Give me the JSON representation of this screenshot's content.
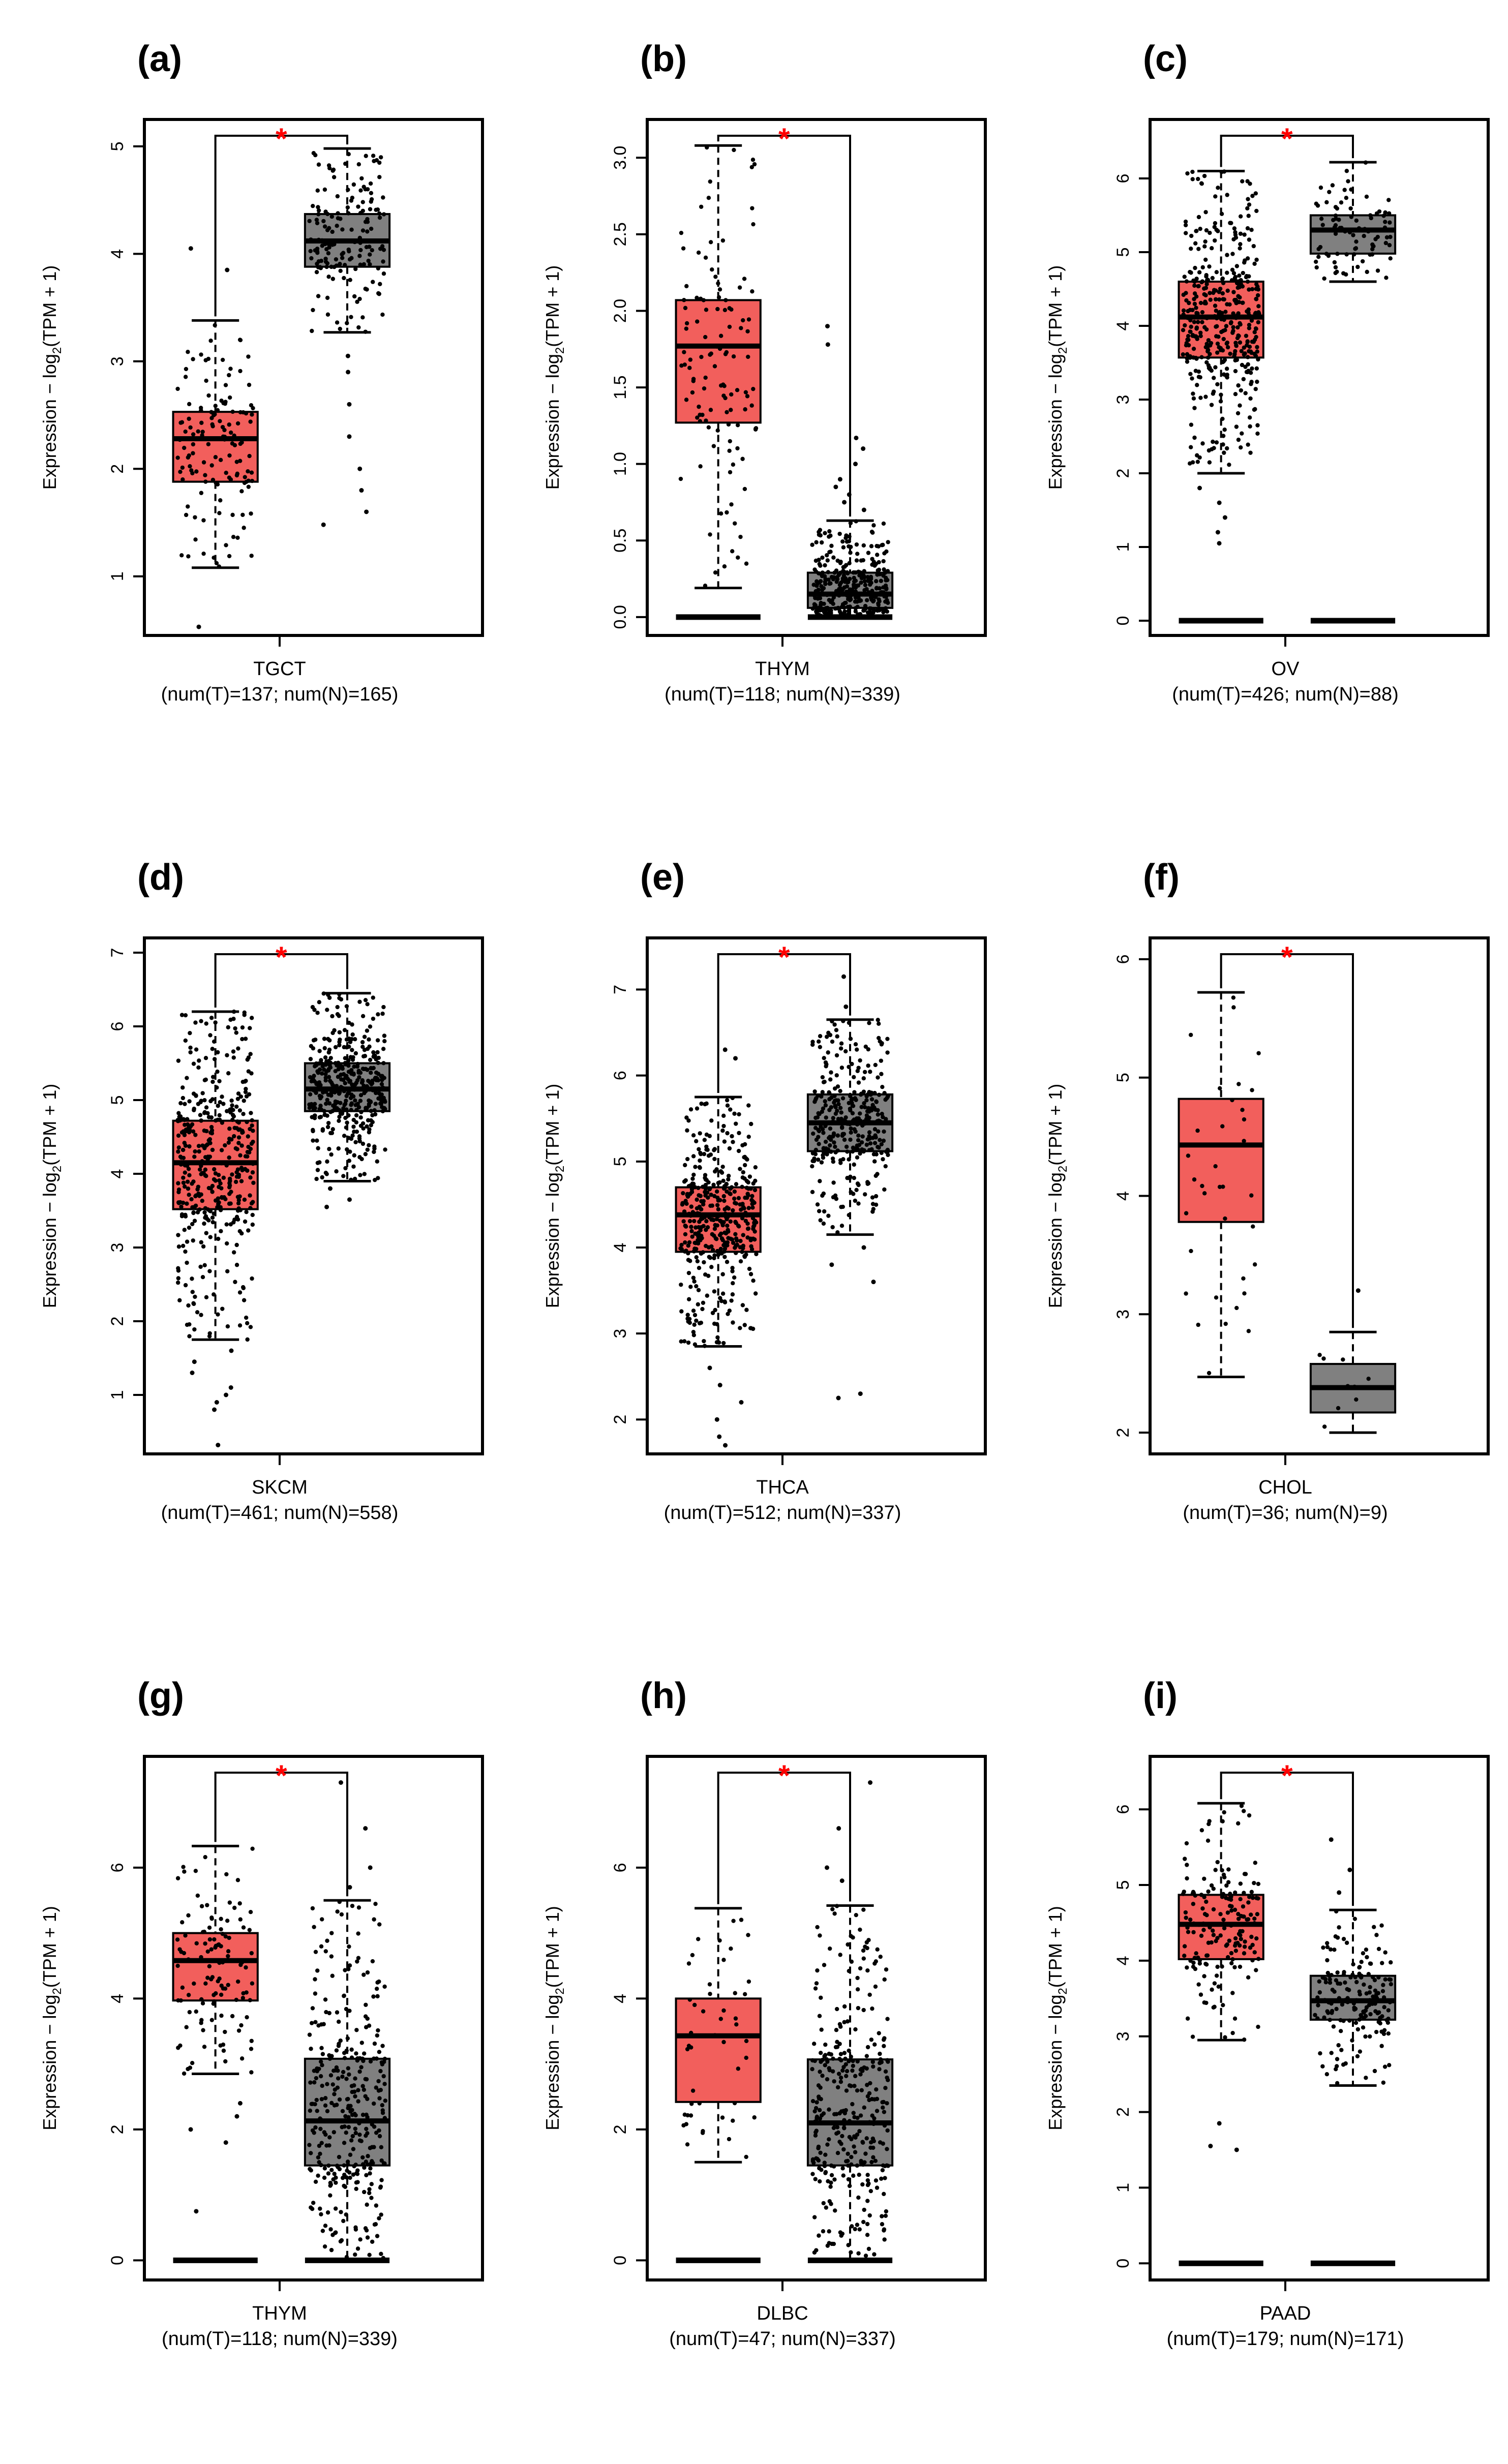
{
  "colors": {
    "tumor": "#f25f5c",
    "normal": "#808080",
    "star": "#ff0000",
    "points": "#000000"
  },
  "chart_data": [
    {
      "panel": "(a)",
      "type": "boxplot",
      "cancer": "TGCT",
      "counts": "(num(T)=137; num(N)=165)",
      "ylabel_prefix": "Expression − log",
      "ylabel_sub": "2",
      "ylabel_suffix": "(TPM + 1)",
      "ylim": [
        0.45,
        5.25
      ],
      "yticks": [
        1,
        2,
        3,
        4,
        5
      ],
      "ytick_labels": [
        "1",
        "2",
        "3",
        "4",
        "5"
      ],
      "significance": "*",
      "boxes": [
        {
          "group": "Tumor",
          "whisker_low": 1.08,
          "q1": 1.88,
          "median": 2.28,
          "q3": 2.53,
          "whisker_high": 3.38,
          "n_points": 137,
          "outliers": [
            0.53,
            3.85,
            4.05
          ],
          "zero_cluster": false
        },
        {
          "group": "Normal",
          "whisker_low": 3.27,
          "q1": 3.88,
          "median": 4.12,
          "q3": 4.37,
          "whisker_high": 4.98,
          "n_points": 165,
          "outliers": [
            1.48,
            1.6,
            1.8,
            2.0,
            2.3,
            2.6,
            2.9,
            3.05
          ],
          "zero_cluster": false
        }
      ]
    },
    {
      "panel": "(b)",
      "type": "boxplot",
      "cancer": "THYM",
      "counts": "(num(T)=118; num(N)=339)",
      "ylabel_prefix": "Expression − log",
      "ylabel_sub": "2",
      "ylabel_suffix": "(TPM + 1)",
      "ylim": [
        -0.12,
        3.25
      ],
      "yticks": [
        0,
        0.5,
        1,
        1.5,
        2,
        2.5,
        3
      ],
      "ytick_labels": [
        "0.0",
        "0.5",
        "1.0",
        "1.5",
        "2.0",
        "2.5",
        "3.0"
      ],
      "significance": "*",
      "boxes": [
        {
          "group": "Tumor",
          "whisker_low": 0.19,
          "q1": 1.27,
          "median": 1.77,
          "q3": 2.07,
          "whisker_high": 3.08,
          "n_points": 118,
          "outliers": [],
          "zero_cluster": true
        },
        {
          "group": "Normal",
          "whisker_low": 0.0,
          "q1": 0.06,
          "median": 0.15,
          "q3": 0.29,
          "whisker_high": 0.63,
          "n_points": 339,
          "outliers": [
            0.7,
            0.75,
            0.8,
            0.85,
            0.9,
            1.0,
            1.1,
            1.17,
            1.78,
            1.9
          ],
          "zero_cluster": true
        }
      ]
    },
    {
      "panel": "(c)",
      "type": "boxplot",
      "cancer": "OV",
      "counts": "(num(T)=426; num(N)=88)",
      "ylabel_prefix": "Expression − log",
      "ylabel_sub": "2",
      "ylabel_suffix": "(TPM + 1)",
      "ylim": [
        -0.2,
        6.8
      ],
      "yticks": [
        0,
        1,
        2,
        3,
        4,
        5,
        6
      ],
      "ytick_labels": [
        "0",
        "1",
        "2",
        "3",
        "4",
        "5",
        "6"
      ],
      "significance": "*",
      "boxes": [
        {
          "group": "Tumor",
          "whisker_low": 2.0,
          "q1": 3.57,
          "median": 4.12,
          "q3": 4.6,
          "whisker_high": 6.1,
          "n_points": 426,
          "outliers": [
            1.05,
            1.2,
            1.4,
            1.6,
            1.8
          ],
          "zero_cluster": true
        },
        {
          "group": "Normal",
          "whisker_low": 4.6,
          "q1": 4.98,
          "median": 5.3,
          "q3": 5.5,
          "whisker_high": 6.22,
          "n_points": 88,
          "outliers": [],
          "zero_cluster": true
        }
      ]
    },
    {
      "panel": "(d)",
      "type": "boxplot",
      "cancer": "SKCM",
      "counts": "(num(T)=461; num(N)=558)",
      "ylabel_prefix": "Expression − log",
      "ylabel_sub": "2",
      "ylabel_suffix": "(TPM + 1)",
      "ylim": [
        0.2,
        7.2
      ],
      "yticks": [
        1,
        2,
        3,
        4,
        5,
        6,
        7
      ],
      "ytick_labels": [
        "1",
        "2",
        "3",
        "4",
        "5",
        "6",
        "7"
      ],
      "significance": "*",
      "boxes": [
        {
          "group": "Tumor",
          "whisker_low": 1.75,
          "q1": 3.52,
          "median": 4.15,
          "q3": 4.72,
          "whisker_high": 6.2,
          "n_points": 461,
          "outliers": [
            0.32,
            0.8,
            0.9,
            1.0,
            1.1,
            1.3,
            1.45,
            1.6
          ],
          "zero_cluster": false
        },
        {
          "group": "Normal",
          "whisker_low": 3.9,
          "q1": 4.85,
          "median": 5.15,
          "q3": 5.5,
          "whisker_high": 6.45,
          "n_points": 558,
          "outliers": [
            3.55,
            3.65,
            3.8
          ],
          "zero_cluster": false
        }
      ]
    },
    {
      "panel": "(e)",
      "type": "boxplot",
      "cancer": "THCA",
      "counts": "(num(T)=512; num(N)=337)",
      "ylabel_prefix": "Expression − log",
      "ylabel_sub": "2",
      "ylabel_suffix": "(TPM + 1)",
      "ylim": [
        1.6,
        7.6
      ],
      "yticks": [
        2,
        3,
        4,
        5,
        6,
        7
      ],
      "ytick_labels": [
        "2",
        "3",
        "4",
        "5",
        "6",
        "7"
      ],
      "significance": "*",
      "boxes": [
        {
          "group": "Tumor",
          "whisker_low": 2.85,
          "q1": 3.95,
          "median": 4.38,
          "q3": 4.7,
          "whisker_high": 5.75,
          "n_points": 512,
          "outliers": [
            1.7,
            1.8,
            2.0,
            2.2,
            2.4,
            2.6,
            6.2,
            6.3
          ],
          "zero_cluster": false
        },
        {
          "group": "Normal",
          "whisker_low": 4.15,
          "q1": 5.12,
          "median": 5.45,
          "q3": 5.78,
          "whisker_high": 6.65,
          "n_points": 337,
          "outliers": [
            2.25,
            2.3,
            3.6,
            3.8,
            4.0,
            6.8,
            7.15
          ],
          "zero_cluster": false
        }
      ]
    },
    {
      "panel": "(f)",
      "type": "boxplot",
      "cancer": "CHOL",
      "counts": "(num(T)=36; num(N)=9)",
      "ylabel_prefix": "Expression − log",
      "ylabel_sub": "2",
      "ylabel_suffix": "(TPM + 1)",
      "ylim": [
        1.82,
        6.18
      ],
      "yticks": [
        2,
        3,
        4,
        5,
        6
      ],
      "ytick_labels": [
        "2",
        "3",
        "4",
        "5",
        "6"
      ],
      "significance": "*",
      "boxes": [
        {
          "group": "Tumor",
          "whisker_low": 2.47,
          "q1": 3.78,
          "median": 4.43,
          "q3": 4.82,
          "whisker_high": 5.72,
          "n_points": 36,
          "outliers": [],
          "zero_cluster": false
        },
        {
          "group": "Normal",
          "whisker_low": 2.0,
          "q1": 2.17,
          "median": 2.38,
          "q3": 2.58,
          "whisker_high": 2.85,
          "n_points": 9,
          "outliers": [
            3.2
          ],
          "zero_cluster": false
        }
      ]
    },
    {
      "panel": "(g)",
      "type": "boxplot",
      "cancer": "THYM",
      "counts": "(num(T)=118; num(N)=339)",
      "ylabel_prefix": "Expression − log",
      "ylabel_sub": "2",
      "ylabel_suffix": "(TPM + 1)",
      "ylim": [
        -0.3,
        7.7
      ],
      "yticks": [
        0,
        2,
        4,
        6
      ],
      "ytick_labels": [
        "0",
        "2",
        "4",
        "6"
      ],
      "significance": "*",
      "boxes": [
        {
          "group": "Tumor",
          "whisker_low": 2.85,
          "q1": 3.97,
          "median": 4.58,
          "q3": 5.0,
          "whisker_high": 6.33,
          "n_points": 118,
          "outliers": [
            0.75,
            1.8,
            2.0,
            2.2,
            2.4
          ],
          "zero_cluster": true
        },
        {
          "group": "Normal",
          "whisker_low": 0.0,
          "q1": 1.45,
          "median": 2.13,
          "q3": 3.08,
          "whisker_high": 5.5,
          "n_points": 339,
          "outliers": [
            5.7,
            6.0,
            6.6,
            7.3
          ],
          "zero_cluster": true
        }
      ]
    },
    {
      "panel": "(h)",
      "type": "boxplot",
      "cancer": "DLBC",
      "counts": "(num(T)=47; num(N)=337)",
      "ylabel_prefix": "Expression − log",
      "ylabel_sub": "2",
      "ylabel_suffix": "(TPM + 1)",
      "ylim": [
        -0.3,
        7.7
      ],
      "yticks": [
        0,
        2,
        4,
        6
      ],
      "ytick_labels": [
        "0",
        "2",
        "4",
        "6"
      ],
      "significance": "*",
      "boxes": [
        {
          "group": "Tumor",
          "whisker_low": 1.5,
          "q1": 2.42,
          "median": 3.43,
          "q3": 4.0,
          "whisker_high": 5.38,
          "n_points": 47,
          "outliers": [],
          "zero_cluster": true
        },
        {
          "group": "Normal",
          "whisker_low": 0.0,
          "q1": 1.45,
          "median": 2.1,
          "q3": 3.07,
          "whisker_high": 5.42,
          "n_points": 337,
          "outliers": [
            5.8,
            6.0,
            6.6,
            7.3
          ],
          "zero_cluster": true
        }
      ]
    },
    {
      "panel": "(i)",
      "type": "boxplot",
      "cancer": "PAAD",
      "counts": "(num(T)=179; num(N)=171)",
      "ylabel_prefix": "Expression − log",
      "ylabel_sub": "2",
      "ylabel_suffix": "(TPM + 1)",
      "ylim": [
        -0.22,
        6.7
      ],
      "yticks": [
        0,
        1,
        2,
        3,
        4,
        5,
        6
      ],
      "ytick_labels": [
        "0",
        "1",
        "2",
        "3",
        "4",
        "5",
        "6"
      ],
      "significance": "*",
      "boxes": [
        {
          "group": "Tumor",
          "whisker_low": 2.95,
          "q1": 4.02,
          "median": 4.48,
          "q3": 4.87,
          "whisker_high": 6.08,
          "n_points": 179,
          "outliers": [
            1.5,
            1.55,
            1.85
          ],
          "zero_cluster": true
        },
        {
          "group": "Normal",
          "whisker_low": 2.35,
          "q1": 3.22,
          "median": 3.47,
          "q3": 3.8,
          "whisker_high": 4.67,
          "n_points": 171,
          "outliers": [
            4.9,
            5.2,
            5.6
          ],
          "zero_cluster": true
        }
      ]
    }
  ]
}
